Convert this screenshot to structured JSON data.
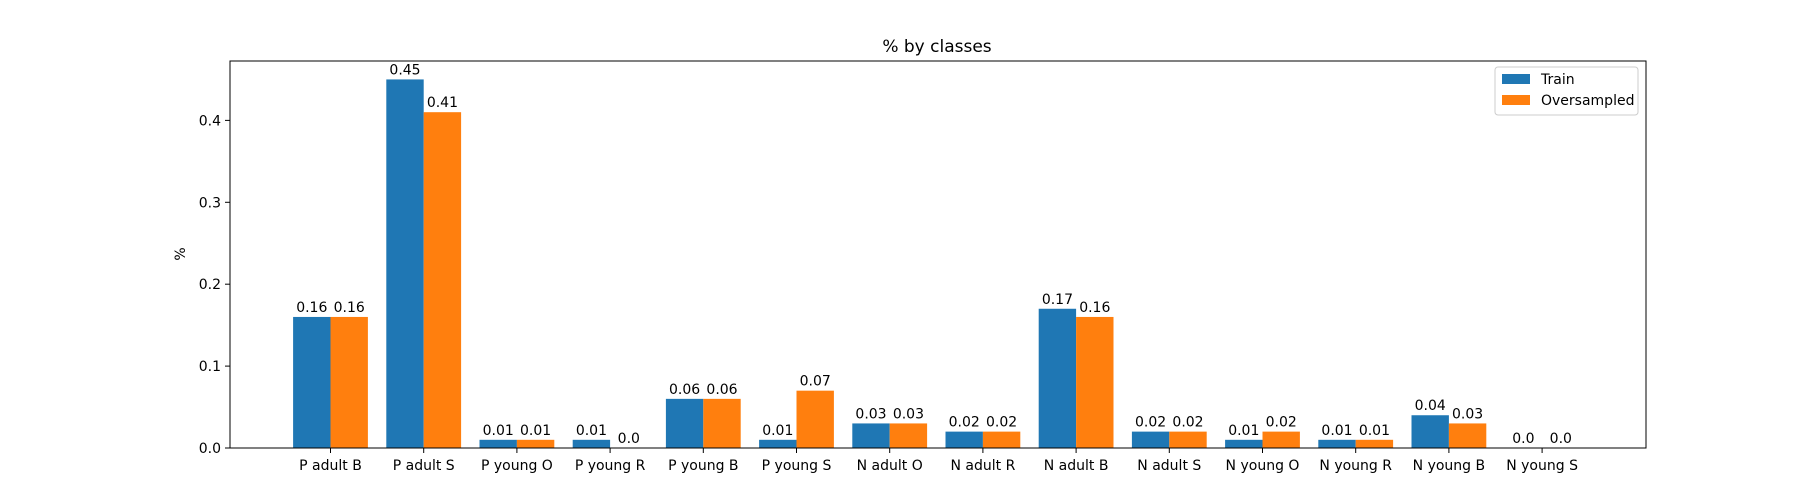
{
  "chart_data": {
    "type": "bar",
    "title": "% by classes",
    "xlabel": "",
    "ylabel": "%",
    "categories": [
      "P adult B",
      "P adult S",
      "P young O",
      "P young R",
      "P young B",
      "P young S",
      "N adult O",
      "N adult R",
      "N adult B",
      "N adult S",
      "N young O",
      "N young R",
      "N young B",
      "N young S"
    ],
    "series": [
      {
        "name": "Train",
        "color": "#1f77b4",
        "values": [
          0.16,
          0.45,
          0.01,
          0.01,
          0.06,
          0.01,
          0.03,
          0.02,
          0.17,
          0.02,
          0.01,
          0.01,
          0.04,
          0.0
        ],
        "labels": [
          "0.16",
          "0.45",
          "0.01",
          "0.01",
          "0.06",
          "0.01",
          "0.03",
          "0.02",
          "0.17",
          "0.02",
          "0.01",
          "0.01",
          "0.04",
          "0.0"
        ]
      },
      {
        "name": "Oversampled",
        "color": "#ff7f0e",
        "values": [
          0.16,
          0.41,
          0.01,
          0.0,
          0.06,
          0.07,
          0.03,
          0.02,
          0.16,
          0.02,
          0.02,
          0.01,
          0.03,
          0.0
        ],
        "labels": [
          "0.16",
          "0.41",
          "0.01",
          "0.0",
          "0.06",
          "0.07",
          "0.03",
          "0.02",
          "0.16",
          "0.02",
          "0.02",
          "0.01",
          "0.03",
          "0.0"
        ]
      }
    ],
    "ylim": [
      0,
      0.4725
    ],
    "yticks": [
      "0.0",
      "0.1",
      "0.2",
      "0.3",
      "0.4"
    ],
    "ytick_values": [
      0.0,
      0.1,
      0.2,
      0.3,
      0.4
    ],
    "grid": false,
    "legend_position": "top-right"
  }
}
